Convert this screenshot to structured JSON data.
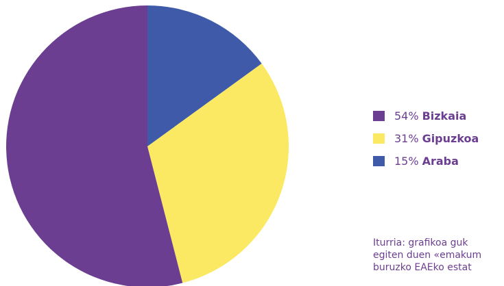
{
  "chart_data": {
    "type": "pie",
    "slices": [
      {
        "label": "Araba",
        "value": 15,
        "percent_label": "15%",
        "color": "#3f5aa8"
      },
      {
        "label": "Gipuzkoa",
        "value": 31,
        "percent_label": "31%",
        "color": "#fbe964"
      },
      {
        "label": "Bizkaia",
        "value": 54,
        "percent_label": "54%",
        "color": "#6b3e91"
      }
    ],
    "legend_order": [
      "Bizkaia",
      "Gipuzkoa",
      "Araba"
    ],
    "legend_placement": "right",
    "start_angle_deg": 0,
    "direction": "clockwise"
  },
  "legend": {
    "items": [
      {
        "percent": "54%",
        "name": "Bizkaia",
        "color": "#6b3e91"
      },
      {
        "percent": "31%",
        "name": "Gipuzkoa",
        "color": "#fbe964"
      },
      {
        "percent": "15%",
        "name": "Araba",
        "color": "#3f5aa8"
      }
    ]
  },
  "source": {
    "text": "Iturria: grafikoa guk\negiten duen «emakum\nburuzko EAEko estat"
  }
}
